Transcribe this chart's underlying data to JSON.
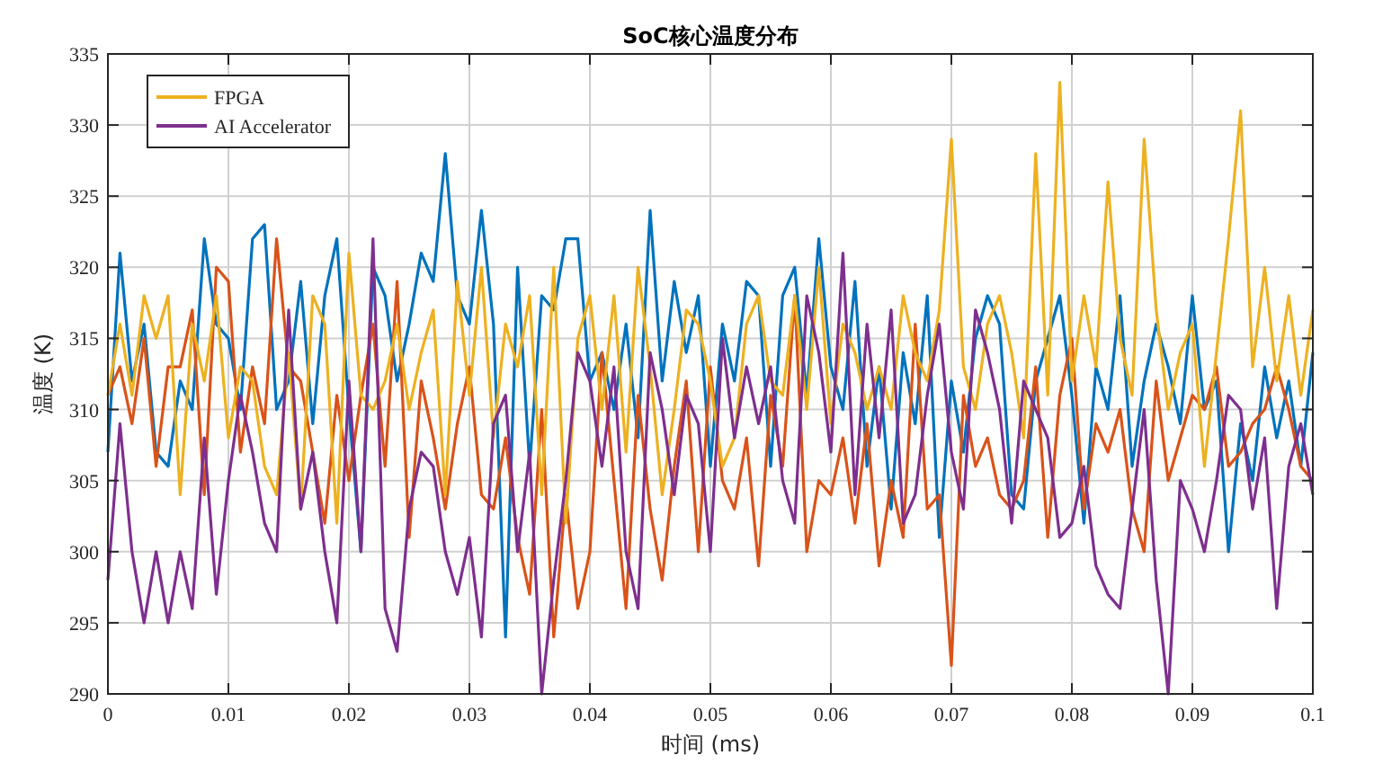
{
  "chart_data": {
    "type": "line",
    "title": "SoC核心温度分布",
    "xlabel": "时间 (ms)",
    "ylabel": "温度 (K)",
    "x": [
      0,
      0.001,
      0.002,
      0.003,
      0.004,
      0.005,
      0.006,
      0.007,
      0.008,
      0.009,
      0.01,
      0.011,
      0.012,
      0.013,
      0.014,
      0.015,
      0.016,
      0.017,
      0.018,
      0.019,
      0.02,
      0.021,
      0.022,
      0.023,
      0.024,
      0.025,
      0.026,
      0.027,
      0.028,
      0.029,
      0.03,
      0.031,
      0.032,
      0.033,
      0.034,
      0.035,
      0.036,
      0.037,
      0.038,
      0.039,
      0.04,
      0.041,
      0.042,
      0.043,
      0.044,
      0.045,
      0.046,
      0.047,
      0.048,
      0.049,
      0.05,
      0.051,
      0.052,
      0.053,
      0.054,
      0.055,
      0.056,
      0.057,
      0.058,
      0.059,
      0.06,
      0.061,
      0.062,
      0.063,
      0.064,
      0.065,
      0.066,
      0.067,
      0.068,
      0.069,
      0.07,
      0.071,
      0.072,
      0.073,
      0.074,
      0.075,
      0.076,
      0.077,
      0.078,
      0.079,
      0.08,
      0.081,
      0.082,
      0.083,
      0.084,
      0.085,
      0.086,
      0.087,
      0.088,
      0.089,
      0.09,
      0.091,
      0.092,
      0.093,
      0.094,
      0.095,
      0.096,
      0.097,
      0.098,
      0.099,
      0.1
    ],
    "series": [
      {
        "color": "#0072bd",
        "values": [
          307,
          321,
          312,
          316,
          307,
          306,
          312,
          310,
          322,
          316,
          315,
          310,
          322,
          323,
          310,
          312,
          319,
          309,
          318,
          322,
          310,
          300,
          320,
          318,
          312,
          316,
          321,
          319,
          328,
          318,
          316,
          324,
          316,
          294,
          320,
          306,
          318,
          317,
          322,
          322,
          312,
          314,
          310,
          316,
          308,
          324,
          312,
          319,
          314,
          318,
          306,
          316,
          312,
          319,
          318,
          306,
          318,
          320,
          311,
          322,
          313,
          310,
          319,
          306,
          313,
          303,
          314,
          309,
          318,
          301,
          312,
          307,
          315,
          318,
          316,
          304,
          303,
          312,
          315,
          318,
          311,
          302,
          313,
          310,
          318,
          306,
          312,
          316,
          313,
          309,
          318,
          310,
          312,
          300,
          309,
          305,
          313,
          308,
          312,
          306,
          314
        ]
      },
      {
        "color": "#d95319",
        "values": [
          311,
          313,
          309,
          315,
          306,
          313,
          313,
          317,
          304,
          320,
          319,
          307,
          313,
          309,
          322,
          313,
          312,
          307,
          302,
          311,
          305,
          311,
          316,
          306,
          319,
          301,
          312,
          308,
          303,
          309,
          313,
          304,
          303,
          308,
          301,
          297,
          310,
          294,
          304,
          296,
          300,
          314,
          305,
          296,
          311,
          303,
          298,
          306,
          312,
          300,
          313,
          305,
          303,
          308,
          299,
          311,
          306,
          318,
          300,
          305,
          304,
          308,
          302,
          309,
          299,
          305,
          301,
          316,
          303,
          304,
          292,
          311,
          306,
          308,
          304,
          303,
          305,
          313,
          301,
          311,
          315,
          303,
          309,
          307,
          310,
          303,
          300,
          312,
          305,
          308,
          311,
          310,
          313,
          306,
          307,
          309,
          310,
          313,
          310,
          306,
          305
        ]
      },
      {
        "name": "FPGA",
        "color": "#edb120",
        "values": [
          311,
          316,
          311,
          318,
          315,
          318,
          304,
          316,
          312,
          318,
          308,
          313,
          312,
          306,
          304,
          314,
          303,
          318,
          316,
          302,
          321,
          311,
          310,
          312,
          316,
          310,
          314,
          317,
          304,
          319,
          311,
          320,
          308,
          316,
          313,
          318,
          304,
          320,
          302,
          315,
          318,
          310,
          318,
          307,
          320,
          313,
          304,
          310,
          317,
          316,
          312,
          306,
          308,
          316,
          318,
          312,
          311,
          318,
          310,
          320,
          309,
          316,
          314,
          310,
          313,
          310,
          318,
          314,
          312,
          317,
          329,
          313,
          310,
          316,
          318,
          314,
          308,
          328,
          311,
          333,
          312,
          318,
          313,
          326,
          315,
          311,
          329,
          317,
          310,
          314,
          316,
          306,
          314,
          322,
          331,
          313,
          320,
          312,
          318,
          311,
          317
        ]
      },
      {
        "name": "AI Accelerator",
        "color": "#7e2f8e",
        "values": [
          298,
          309,
          300,
          295,
          300,
          295,
          300,
          296,
          308,
          297,
          305,
          311,
          307,
          302,
          300,
          317,
          303,
          307,
          300,
          295,
          312,
          300,
          322,
          296,
          293,
          303,
          307,
          306,
          300,
          297,
          301,
          294,
          309,
          311,
          300,
          307,
          290,
          298,
          305,
          314,
          312,
          306,
          313,
          300,
          296,
          314,
          310,
          304,
          311,
          309,
          300,
          315,
          308,
          313,
          309,
          313,
          305,
          302,
          318,
          314,
          307,
          321,
          304,
          316,
          308,
          317,
          302,
          304,
          311,
          316,
          307,
          303,
          317,
          314,
          310,
          302,
          312,
          310,
          308,
          301,
          302,
          306,
          299,
          297,
          296,
          303,
          310,
          298,
          290,
          305,
          303,
          300,
          305,
          311,
          310,
          303,
          308,
          296,
          306,
          309,
          304
        ]
      }
    ],
    "xlim": [
      0,
      0.1
    ],
    "xticks": [
      0,
      0.01,
      0.02,
      0.03,
      0.04,
      0.05,
      0.06,
      0.07,
      0.08,
      0.09,
      0.1
    ],
    "ylim": [
      290,
      335
    ],
    "yticks": [
      290,
      295,
      300,
      305,
      310,
      315,
      320,
      325,
      330,
      335
    ],
    "grid": true,
    "legend": "top left"
  }
}
